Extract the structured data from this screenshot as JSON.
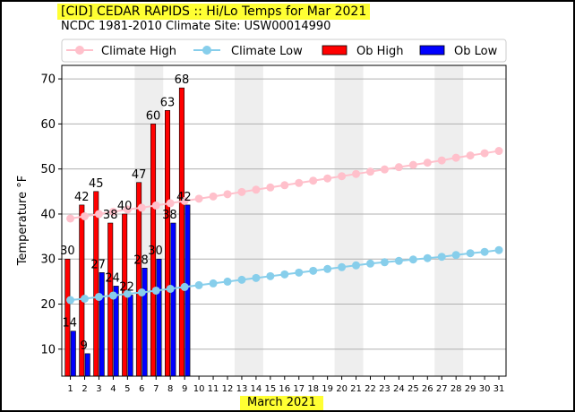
{
  "chart_data": {
    "type": "bar",
    "title": "[CID] CEDAR RAPIDS :: Hi/Lo Temps for Mar 2021",
    "subtitle": "NCDC 1981-2010 Climate Site: USW00014990",
    "xlabel": "March 2021",
    "ylabel": "Temperature °F",
    "ylim": [
      4,
      73
    ],
    "yticks": [
      10,
      20,
      30,
      40,
      50,
      60,
      70
    ],
    "days": [
      1,
      2,
      3,
      4,
      5,
      6,
      7,
      8,
      9,
      10,
      11,
      12,
      13,
      14,
      15,
      16,
      17,
      18,
      19,
      20,
      21,
      22,
      23,
      24,
      25,
      26,
      27,
      28,
      29,
      30,
      31
    ],
    "shaded_days": [
      [
        6,
        7
      ],
      [
        13,
        14
      ],
      [
        20,
        21
      ],
      [
        27,
        28
      ]
    ],
    "legend_position": "top",
    "grid": "y",
    "series": [
      {
        "name": "Climate High",
        "kind": "line",
        "color": "#ffc0cb",
        "values": [
          39.0,
          39.5,
          40.0,
          40.5,
          41.0,
          41.4,
          41.9,
          42.4,
          42.9,
          43.4,
          43.9,
          44.4,
          44.9,
          45.4,
          45.9,
          46.4,
          46.9,
          47.4,
          47.9,
          48.4,
          48.9,
          49.4,
          49.9,
          50.4,
          50.9,
          51.4,
          51.9,
          52.5,
          53.0,
          53.5,
          54.0
        ]
      },
      {
        "name": "Climate Low",
        "kind": "line",
        "color": "#87ceeb",
        "values": [
          20.9,
          21.2,
          21.6,
          21.9,
          22.3,
          22.6,
          23.0,
          23.4,
          23.8,
          24.2,
          24.6,
          25.0,
          25.4,
          25.8,
          26.2,
          26.6,
          27.0,
          27.4,
          27.8,
          28.2,
          28.6,
          29.0,
          29.3,
          29.6,
          29.9,
          30.2,
          30.5,
          30.9,
          31.3,
          31.6,
          32.0
        ]
      },
      {
        "name": "Ob High",
        "kind": "bar",
        "color": "#ff0000",
        "values": [
          30,
          42,
          45,
          38,
          40,
          47,
          60,
          63,
          68
        ]
      },
      {
        "name": "Ob Low",
        "kind": "bar",
        "color": "#0000ff",
        "values": [
          14,
          9,
          27,
          24,
          22,
          28,
          30,
          38,
          42
        ]
      }
    ]
  }
}
